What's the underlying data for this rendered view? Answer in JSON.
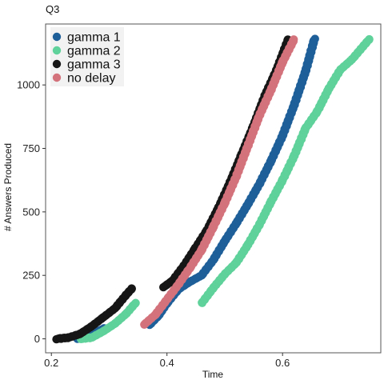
{
  "chart_data": {
    "type": "scatter",
    "title": "Q3",
    "xlabel": "Time",
    "ylabel": "# Answers Produced",
    "xlim": [
      0.19,
      0.77
    ],
    "ylim": [
      -55,
      1240
    ],
    "x_ticks": [
      {
        "value": 0.2,
        "label": "0.2"
      },
      {
        "value": 0.4,
        "label": "0.4"
      },
      {
        "value": 0.6,
        "label": "0.6"
      }
    ],
    "y_ticks": [
      {
        "value": 0,
        "label": "0"
      },
      {
        "value": 250,
        "label": "250"
      },
      {
        "value": 500,
        "label": "500"
      },
      {
        "value": 750,
        "label": "750"
      },
      {
        "value": 1000,
        "label": "1000"
      }
    ],
    "grid": false,
    "legend_position": "top-left",
    "series": [
      {
        "name": "gamma 1",
        "color": "#1f5f99",
        "segments": [
          [
            [
              0.245,
              0
            ],
            [
              0.26,
              10
            ],
            [
              0.275,
              22
            ],
            [
              0.29,
              40
            ]
          ],
          [
            [
              0.37,
              55
            ],
            [
              0.385,
              90
            ],
            [
              0.4,
              140
            ],
            [
              0.42,
              195
            ],
            [
              0.44,
              225
            ],
            [
              0.46,
              250
            ],
            [
              0.48,
              310
            ],
            [
              0.5,
              385
            ],
            [
              0.52,
              455
            ],
            [
              0.54,
              530
            ],
            [
              0.56,
              610
            ],
            [
              0.58,
              700
            ],
            [
              0.6,
              800
            ],
            [
              0.62,
              920
            ],
            [
              0.64,
              1055
            ],
            [
              0.655,
              1180
            ]
          ]
        ]
      },
      {
        "name": "gamma 2",
        "color": "#5fd19a",
        "segments": [
          [
            [
              0.25,
              0
            ],
            [
              0.27,
              5
            ],
            [
              0.29,
              30
            ],
            [
              0.31,
              60
            ],
            [
              0.33,
              100
            ],
            [
              0.345,
              140
            ]
          ],
          [
            [
              0.46,
              140
            ],
            [
              0.48,
              200
            ],
            [
              0.5,
              255
            ],
            [
              0.52,
              300
            ],
            [
              0.54,
              370
            ],
            [
              0.56,
              450
            ],
            [
              0.58,
              540
            ],
            [
              0.6,
              625
            ],
            [
              0.62,
              720
            ],
            [
              0.64,
              830
            ],
            [
              0.66,
              895
            ],
            [
              0.68,
              985
            ],
            [
              0.7,
              1060
            ],
            [
              0.72,
              1100
            ],
            [
              0.735,
              1140
            ],
            [
              0.75,
              1180
            ]
          ]
        ]
      },
      {
        "name": "gamma 3",
        "color": "#161616",
        "segments": [
          [
            [
              0.21,
              0
            ],
            [
              0.23,
              5
            ],
            [
              0.25,
              20
            ],
            [
              0.27,
              50
            ],
            [
              0.29,
              85
            ],
            [
              0.31,
              120
            ],
            [
              0.33,
              175
            ],
            [
              0.34,
              200
            ]
          ],
          [
            [
              0.395,
              205
            ],
            [
              0.41,
              230
            ],
            [
              0.43,
              290
            ],
            [
              0.45,
              360
            ],
            [
              0.47,
              430
            ],
            [
              0.49,
              520
            ],
            [
              0.51,
              620
            ],
            [
              0.53,
              730
            ],
            [
              0.55,
              840
            ],
            [
              0.57,
              960
            ],
            [
              0.59,
              1060
            ],
            [
              0.61,
              1180
            ]
          ]
        ]
      },
      {
        "name": "no delay",
        "color": "#d4727c",
        "segments": [
          [
            [
              0.36,
              55
            ],
            [
              0.38,
              95
            ],
            [
              0.4,
              155
            ],
            [
              0.42,
              215
            ],
            [
              0.44,
              280
            ],
            [
              0.46,
              350
            ],
            [
              0.48,
              440
            ],
            [
              0.5,
              535
            ],
            [
              0.52,
              640
            ],
            [
              0.54,
              760
            ],
            [
              0.56,
              880
            ],
            [
              0.58,
              980
            ],
            [
              0.6,
              1090
            ],
            [
              0.62,
              1180
            ]
          ]
        ]
      }
    ]
  }
}
